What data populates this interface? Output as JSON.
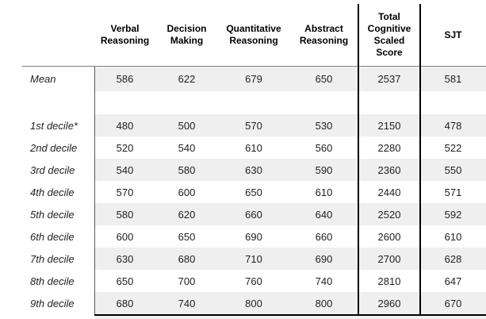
{
  "chart_data": {
    "type": "table",
    "columns": [
      "",
      "Verbal Reasoning",
      "Decision Making",
      "Quantitative Reasoning",
      "Abstract Reasoning",
      "Total Cognitive Scaled Score",
      "SJT"
    ],
    "rows": [
      {
        "label": "Mean",
        "values": [
          "586",
          "622",
          "679",
          "650",
          "2537",
          "581"
        ],
        "shaded": true,
        "blank": false
      },
      {
        "label": "",
        "values": [
          "",
          "",
          "",
          "",
          "",
          ""
        ],
        "shaded": false,
        "blank": true
      },
      {
        "label": "1st decile*",
        "values": [
          "480",
          "500",
          "570",
          "530",
          "2150",
          "478"
        ],
        "shaded": true,
        "blank": false
      },
      {
        "label": "2nd decile",
        "values": [
          "520",
          "540",
          "610",
          "560",
          "2280",
          "522"
        ],
        "shaded": false,
        "blank": false
      },
      {
        "label": "3rd decile",
        "values": [
          "540",
          "580",
          "630",
          "590",
          "2360",
          "550"
        ],
        "shaded": true,
        "blank": false
      },
      {
        "label": "4th decile",
        "values": [
          "570",
          "600",
          "650",
          "610",
          "2440",
          "571"
        ],
        "shaded": false,
        "blank": false
      },
      {
        "label": "5th decile",
        "values": [
          "580",
          "620",
          "660",
          "640",
          "2520",
          "592"
        ],
        "shaded": true,
        "blank": false
      },
      {
        "label": "6th decile",
        "values": [
          "600",
          "650",
          "690",
          "660",
          "2600",
          "610"
        ],
        "shaded": false,
        "blank": false
      },
      {
        "label": "7th decile",
        "values": [
          "630",
          "680",
          "710",
          "690",
          "2700",
          "628"
        ],
        "shaded": true,
        "blank": false
      },
      {
        "label": "8th decile",
        "values": [
          "650",
          "700",
          "760",
          "740",
          "2810",
          "647"
        ],
        "shaded": false,
        "blank": false
      },
      {
        "label": "9th decile",
        "values": [
          "680",
          "740",
          "800",
          "800",
          "2960",
          "670"
        ],
        "shaded": true,
        "blank": false
      }
    ],
    "layout_hints": {
      "stripe_color": "#efefef",
      "gray_rule_color": "#7f7f7f",
      "black_rule_color": "#000000",
      "total_cognitive_column_boxed": true,
      "row_labels_italic": true
    }
  }
}
